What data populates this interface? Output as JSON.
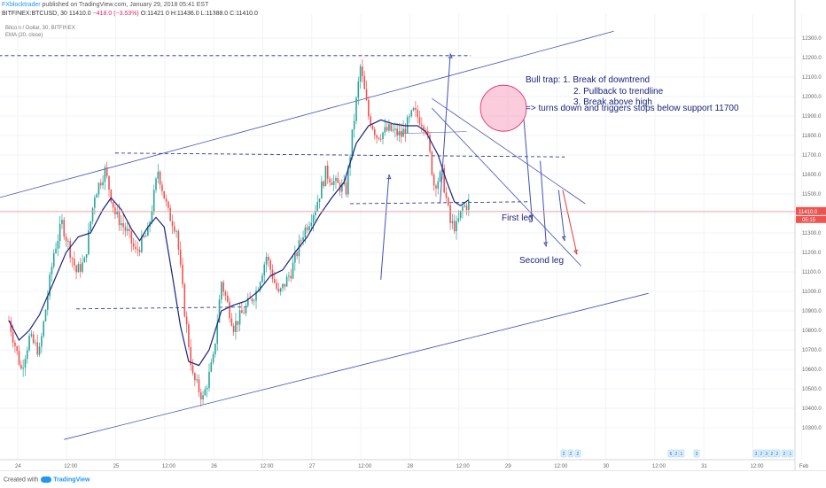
{
  "header": {
    "publisher": "FXblocktrader",
    "published_text": "published on TradingView.com, January 29, 2018 05:41 EST",
    "symbol_line": "BITFINEX:BTCUSD, 30",
    "price_line": "11410.0",
    "change_line": "−418.0 (−3.53%)",
    "ohlc_line": "O:11421.0 H:11436.0 L:11388.0 C:11410.0"
  },
  "indicators": {
    "title": "Bitcoin / Dollar, 30, BITFINEX",
    "ema": "EMA (20, close)"
  },
  "footer": {
    "created_with": "Created with",
    "brand": "TradingView"
  },
  "chart_data": {
    "type": "candlestick",
    "x_tick_labels": [
      "24",
      "12:00",
      "25",
      "12:00",
      "26",
      "12:00",
      "27",
      "12:00",
      "28",
      "12:00",
      "29",
      "12:00",
      "30",
      "12:00",
      "31",
      "12:00",
      "Feb"
    ],
    "y_tick_labels": [
      "12300.0",
      "12200.0",
      "12100.0",
      "12000.0",
      "11900.0",
      "11800.0",
      "11700.0",
      "11600.0",
      "11500.0",
      "11400.0",
      "11300.0",
      "11200.0",
      "11100.0",
      "11000.0",
      "10900.0",
      "10800.0",
      "10700.0",
      "10600.0",
      "10500.0",
      "10400.0",
      "10300.0"
    ],
    "ylim": [
      10250,
      12350
    ],
    "current_price_label": "11410.0",
    "countdown_label": "05:15",
    "candles": {
      "count": 260,
      "anchors": [
        [
          0,
          10850
        ],
        [
          6,
          10600
        ],
        [
          10,
          10760
        ],
        [
          15,
          10690
        ],
        [
          22,
          11200
        ],
        [
          26,
          11350
        ],
        [
          33,
          11100
        ],
        [
          37,
          11150
        ],
        [
          42,
          11500
        ],
        [
          47,
          11620
        ],
        [
          52,
          11400
        ],
        [
          58,
          11300
        ],
        [
          62,
          11200
        ],
        [
          68,
          11300
        ],
        [
          73,
          11620
        ],
        [
          78,
          11400
        ],
        [
          82,
          11320
        ],
        [
          86,
          10900
        ],
        [
          90,
          10560
        ],
        [
          95,
          10450
        ],
        [
          100,
          10650
        ],
        [
          104,
          11050
        ],
        [
          110,
          10820
        ],
        [
          115,
          10900
        ],
        [
          121,
          11000
        ],
        [
          126,
          11180
        ],
        [
          132,
          10980
        ],
        [
          138,
          11100
        ],
        [
          144,
          11300
        ],
        [
          150,
          11430
        ],
        [
          155,
          11610
        ],
        [
          160,
          11550
        ],
        [
          165,
          11520
        ],
        [
          168,
          11800
        ],
        [
          172,
          12150
        ],
        [
          176,
          11900
        ],
        [
          180,
          11800
        ],
        [
          186,
          11830
        ],
        [
          192,
          11800
        ],
        [
          198,
          11920
        ],
        [
          204,
          11850
        ],
        [
          208,
          11550
        ],
        [
          212,
          11600
        ],
        [
          216,
          11350
        ],
        [
          219,
          11330
        ],
        [
          222,
          11430
        ],
        [
          225,
          11450
        ]
      ]
    },
    "ema": {
      "name": "EMA (20, close)",
      "points": [
        [
          0,
          10850
        ],
        [
          5,
          10750
        ],
        [
          10,
          10800
        ],
        [
          15,
          10880
        ],
        [
          22,
          11050
        ],
        [
          28,
          11200
        ],
        [
          34,
          11280
        ],
        [
          40,
          11300
        ],
        [
          46,
          11420
        ],
        [
          50,
          11480
        ],
        [
          55,
          11420
        ],
        [
          60,
          11320
        ],
        [
          64,
          11260
        ],
        [
          68,
          11330
        ],
        [
          72,
          11380
        ],
        [
          76,
          11330
        ],
        [
          80,
          11080
        ],
        [
          84,
          10820
        ],
        [
          88,
          10640
        ],
        [
          93,
          10620
        ],
        [
          98,
          10700
        ],
        [
          104,
          10900
        ],
        [
          110,
          10930
        ],
        [
          116,
          10950
        ],
        [
          122,
          11000
        ],
        [
          128,
          11080
        ],
        [
          134,
          11110
        ],
        [
          140,
          11200
        ],
        [
          146,
          11280
        ],
        [
          152,
          11390
        ],
        [
          158,
          11480
        ],
        [
          164,
          11560
        ],
        [
          170,
          11760
        ],
        [
          176,
          11850
        ],
        [
          182,
          11880
        ],
        [
          188,
          11860
        ],
        [
          194,
          11850
        ],
        [
          200,
          11850
        ],
        [
          204,
          11820
        ],
        [
          210,
          11700
        ],
        [
          214,
          11570
        ],
        [
          218,
          11460
        ],
        [
          221,
          11440
        ],
        [
          225,
          11470
        ]
      ]
    },
    "annotations": {
      "bull_trap_title": "Bull trap: 1. Break of downtrend",
      "bull_trap_2": "2. Pullback to trendline",
      "bull_trap_3": "3. Break above high",
      "bull_trap_4": "=> turns down and triggers stops below support 11700",
      "first_leg": "First leg",
      "second_leg": "Second leg"
    },
    "event_badges": [
      "2",
      "2",
      "2",
      "6",
      "2",
      "1",
      "3",
      "3",
      "2",
      "3",
      "2",
      "2",
      "2",
      "1"
    ],
    "colors": {
      "up": "#26a69a",
      "down": "#ef5350",
      "ema": "#1a237e",
      "drawings": "#3f51b5",
      "arrow_down": "#e53935",
      "bull_trap_circle": "#f48fb1",
      "price_tag": "#ef5350",
      "text": "#1a237e"
    }
  }
}
